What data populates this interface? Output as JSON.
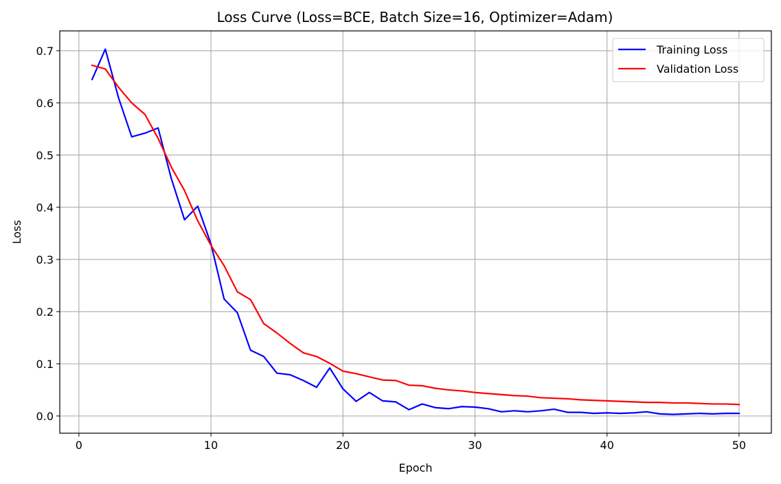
{
  "chart_data": {
    "type": "line",
    "title": "Loss Curve (Loss=BCE, Batch Size=16, Optimizer=Adam)",
    "xlabel": "Epoch",
    "ylabel": "Loss",
    "xlim": [
      -1.45,
      52.45
    ],
    "ylim": [
      -0.033,
      0.738
    ],
    "xticks": [
      0,
      10,
      20,
      30,
      40,
      50
    ],
    "yticks": [
      0.0,
      0.1,
      0.2,
      0.3,
      0.4,
      0.5,
      0.6,
      0.7
    ],
    "xtick_labels": [
      "0",
      "10",
      "20",
      "30",
      "40",
      "50"
    ],
    "ytick_labels": [
      "0.0",
      "0.1",
      "0.2",
      "0.3",
      "0.4",
      "0.5",
      "0.6",
      "0.7"
    ],
    "grid": true,
    "legend_position": "top-right",
    "x": [
      1,
      2,
      3,
      4,
      5,
      6,
      7,
      8,
      9,
      10,
      11,
      12,
      13,
      14,
      15,
      16,
      17,
      18,
      19,
      20,
      21,
      22,
      23,
      24,
      25,
      26,
      27,
      28,
      29,
      30,
      31,
      32,
      33,
      34,
      35,
      36,
      37,
      38,
      39,
      40,
      41,
      42,
      43,
      44,
      45,
      46,
      47,
      48,
      49,
      50
    ],
    "series": [
      {
        "name": "Training Loss",
        "color": "#0000ff",
        "values": [
          0.645,
          0.703,
          0.61,
          0.535,
          0.542,
          0.552,
          0.455,
          0.376,
          0.402,
          0.33,
          0.224,
          0.198,
          0.126,
          0.114,
          0.082,
          0.079,
          0.068,
          0.055,
          0.092,
          0.052,
          0.028,
          0.045,
          0.029,
          0.027,
          0.012,
          0.023,
          0.016,
          0.014,
          0.018,
          0.017,
          0.014,
          0.008,
          0.01,
          0.008,
          0.01,
          0.013,
          0.007,
          0.007,
          0.005,
          0.006,
          0.005,
          0.006,
          0.008,
          0.004,
          0.003,
          0.004,
          0.005,
          0.004,
          0.005,
          0.005
        ]
      },
      {
        "name": "Validation Loss",
        "color": "#ff0000",
        "values": [
          0.672,
          0.665,
          0.63,
          0.6,
          0.578,
          0.532,
          0.477,
          0.432,
          0.374,
          0.327,
          0.288,
          0.238,
          0.223,
          0.177,
          0.159,
          0.139,
          0.121,
          0.114,
          0.101,
          0.086,
          0.081,
          0.075,
          0.069,
          0.068,
          0.059,
          0.058,
          0.053,
          0.05,
          0.048,
          0.045,
          0.043,
          0.041,
          0.039,
          0.038,
          0.035,
          0.034,
          0.033,
          0.031,
          0.03,
          0.029,
          0.028,
          0.027,
          0.026,
          0.026,
          0.025,
          0.025,
          0.024,
          0.023,
          0.023,
          0.022
        ]
      }
    ]
  }
}
